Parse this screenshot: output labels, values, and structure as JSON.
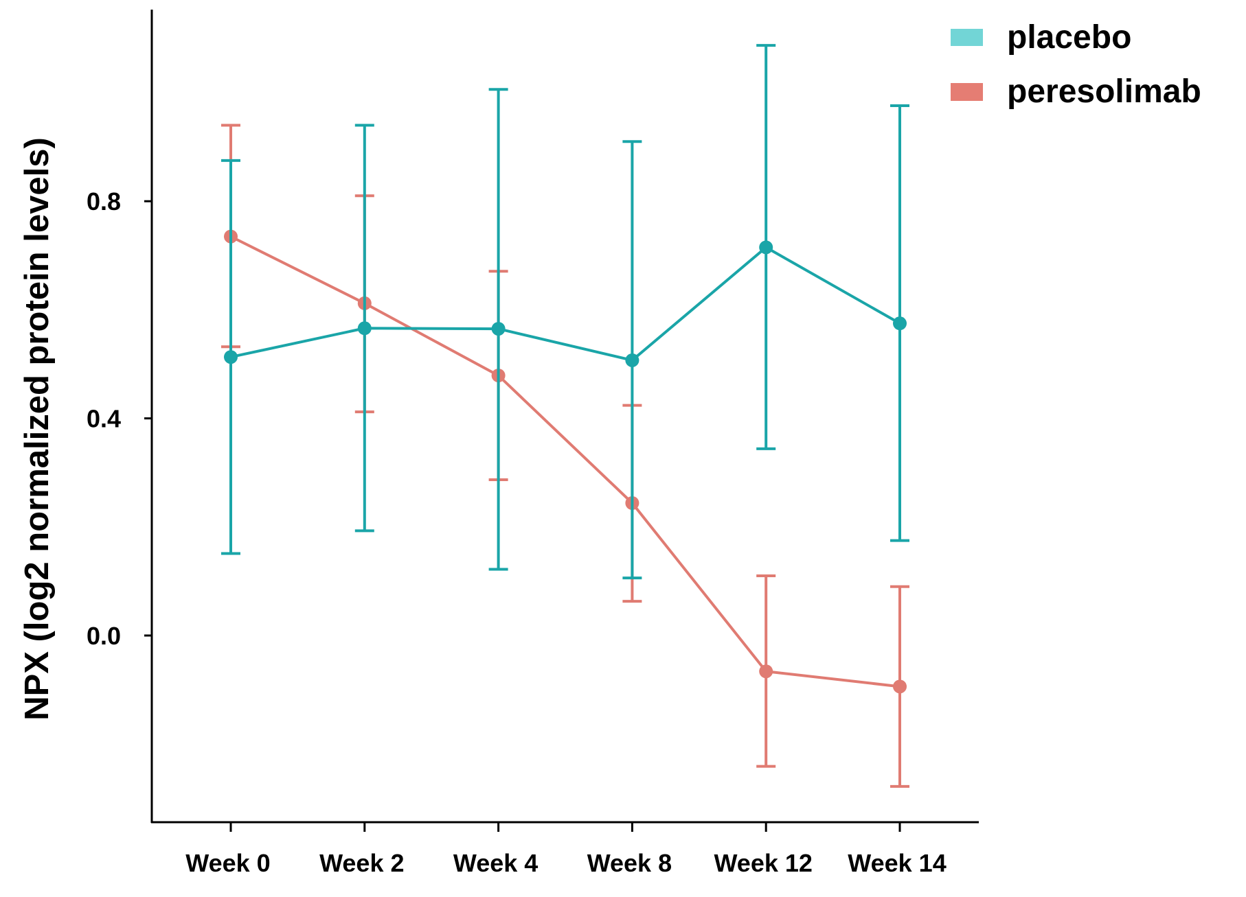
{
  "chart_data": {
    "type": "line",
    "title": "",
    "xlabel": "",
    "ylabel": "NPX (log2 normalized protein levels)",
    "categories": [
      "Week 0",
      "Week 2",
      "Week 4",
      "Week 8",
      "Week 12",
      "Week 14"
    ],
    "ylim": [
      -0.344,
      1.153
    ],
    "yticks": [
      "0.0",
      "0.4",
      "0.8"
    ],
    "ytick_values": [
      0.0,
      0.4,
      0.8
    ],
    "grid": false,
    "legend_position": "top-right",
    "series": [
      {
        "name": "placebo",
        "color": "#1aa5a8",
        "legend_color": "#72d5d6",
        "values": [
          0.513,
          0.566,
          0.565,
          0.507,
          0.715,
          0.575
        ],
        "error_low": [
          0.151,
          0.193,
          0.122,
          0.106,
          0.344,
          0.175
        ],
        "error_high": [
          0.875,
          0.94,
          1.006,
          0.91,
          1.087,
          0.976
        ]
      },
      {
        "name": "peresolimab",
        "color": "#e07b72",
        "legend_color": "#e57d73",
        "values": [
          0.735,
          0.612,
          0.479,
          0.244,
          -0.066,
          -0.094
        ],
        "error_low": [
          0.532,
          0.412,
          0.287,
          0.063,
          -0.241,
          -0.278
        ],
        "error_high": [
          0.94,
          0.81,
          0.671,
          0.424,
          0.11,
          0.09
        ]
      }
    ]
  }
}
